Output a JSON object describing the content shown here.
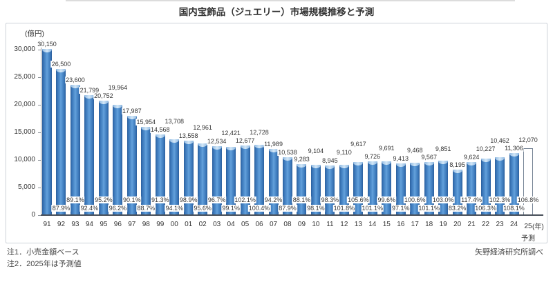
{
  "title": "国内宝飾品（ジュエリー）市場規模推移と予測",
  "y_axis_unit": "(億円)",
  "x_axis_unit": "(年)",
  "forecast_label": "予測",
  "notes": [
    "注1．小売金額ベース",
    "注2．2025年は予測値"
  ],
  "source": "矢野経済研究所調べ",
  "chart_data": {
    "type": "bar",
    "title": "国内宝飾品（ジュエリー）市場規模推移と予測",
    "ylabel": "(億円)",
    "xlabel": "(年)",
    "ylim": [
      0,
      32000
    ],
    "yticks": [
      0,
      5000,
      10000,
      15000,
      20000,
      25000,
      30000
    ],
    "ytick_labels": [
      "0",
      "5,000",
      "10,000",
      "15,000",
      "20,000",
      "25,000",
      "30,000"
    ],
    "grid": false,
    "legend": null,
    "categories": [
      "91",
      "92",
      "93",
      "94",
      "95",
      "96",
      "97",
      "98",
      "99",
      "00",
      "01",
      "02",
      "03",
      "04",
      "05",
      "06",
      "07",
      "08",
      "09",
      "10",
      "11",
      "12",
      "13",
      "14",
      "15",
      "16",
      "17",
      "18",
      "19",
      "20",
      "21",
      "22",
      "23",
      "24",
      "25"
    ],
    "values": [
      30150,
      26500,
      23600,
      21799,
      20752,
      19964,
      17987,
      15954,
      14568,
      13708,
      13558,
      12961,
      12534,
      12421,
      12677,
      12728,
      11989,
      10538,
      9283,
      9104,
      8945,
      9110,
      9617,
      9726,
      9691,
      9413,
      9468,
      9567,
      9851,
      8195,
      9624,
      10227,
      10462,
      11306,
      12070
    ],
    "value_labels": [
      "30,150",
      "26,500",
      "23,600",
      "21,799",
      "20,752",
      "19,964",
      "17,987",
      "15,954",
      "14,568",
      "13,708",
      "13,558",
      "12,961",
      "12,534",
      "12,421",
      "12,677",
      "12,728",
      "11,989",
      "10,538",
      "9,283",
      "9,104",
      "8,945",
      "9,110",
      "9,617",
      "9,726",
      "9,691",
      "9,413",
      "9,468",
      "9,567",
      "9,851",
      "8,195",
      "9,624",
      "10,227",
      "10,462",
      "11,306",
      "12,070"
    ],
    "yoy_labels": [
      "",
      "87.9%",
      "89.1%",
      "92.4%",
      "95.2%",
      "96.2%",
      "90.1%",
      "88.7%",
      "91.3%",
      "94.1%",
      "98.9%",
      "95.6%",
      "96.7%",
      "99.1%",
      "102.1%",
      "100.4%",
      "94.2%",
      "87.9%",
      "88.1%",
      "98.1%",
      "98.3%",
      "101.8%",
      "105.6%",
      "101.1%",
      "99.6%",
      "97.1%",
      "100.6%",
      "101.1%",
      "103.0%",
      "83.2%",
      "117.4%",
      "106.3%",
      "102.3%",
      "108.1%",
      "106.8%"
    ],
    "forecast_index": 34,
    "bar_color": "#3c7ec0",
    "bar_edge_color": "#2b5f9c",
    "bar_cap_color": "#b9d7ef",
    "forecast_bar_fill": "#ffffff",
    "forecast_bar_border": "#6f7e90"
  }
}
